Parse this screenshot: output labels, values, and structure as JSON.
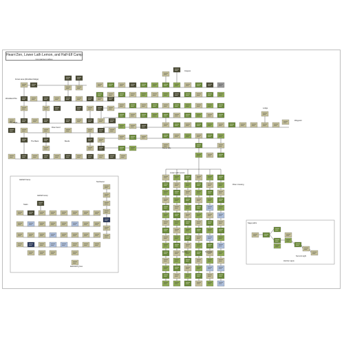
{
  "header": {
    "title": "Hearn'Zen, Lower Lath Lemon, and Half-Elf Camp",
    "subtitle": "Comparison tables"
  },
  "labels": {
    "forest_area": "Forest area (Woodland Edge)",
    "woodland_pits": "Woodland Pits",
    "the_bend": "The Bend",
    "river_bend": "River bend",
    "the_bank": "The Bank",
    "bends": "Bends",
    "lower_lath_lemon": "Lower Lath Lemon",
    "half_elf_camp": "Half-Elf Camp",
    "lodge": "Lodge",
    "waypoint": "Waypoint",
    "camp_side": "Camp side",
    "summit_sight": "Summit sight",
    "horizon_signs": "Horizon signs",
    "river_crossing": "River crossing",
    "elf_camp_right": "Half-Elf camp",
    "stairs": "Stairs",
    "lower_lath_title": "Lower lath camp",
    "eastward_grove": "Eastward grove",
    "sage_paths": "Sage paths",
    "outpost": "Outpost",
    "northwest": "Northwest",
    "forest": "Forest",
    "top_bank": "Top bank",
    "lower_left": "Lower left"
  },
  "colors": {
    "dark": "#4a4a34",
    "olive": "#6b8a3a",
    "green": "#8faa55",
    "khaki": "#c5c09a",
    "blue": "#aebfdc",
    "navy": "#2c3a5c",
    "grey": "#9a9a9a",
    "line": "#333333"
  }
}
